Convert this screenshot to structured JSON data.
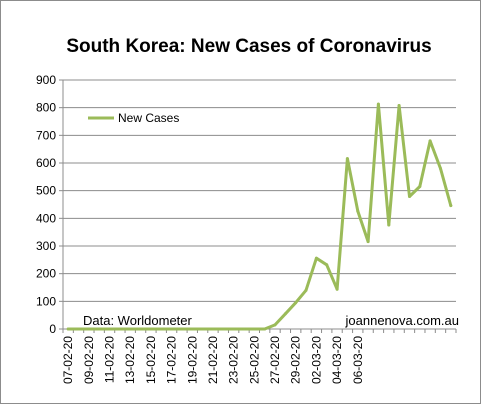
{
  "chart_data": {
    "type": "line",
    "title": "South Korea: New Cases of Coronavirus",
    "series": [
      {
        "name": "New Cases",
        "color": "#9bbb59",
        "values": [
          0,
          0,
          0,
          0,
          0,
          0,
          0,
          0,
          0,
          0,
          0,
          0,
          0,
          0,
          0,
          0,
          0,
          0,
          0,
          0,
          15,
          55,
          95,
          140,
          256,
          232,
          144,
          616,
          426,
          316,
          813,
          376,
          808,
          479,
          515,
          680,
          580,
          446
        ]
      }
    ],
    "x": [
      "07-02-20",
      "08-02-20",
      "09-02-20",
      "10-02-20",
      "11-02-20",
      "12-02-20",
      "13-02-20",
      "14-02-20",
      "15-02-20",
      "16-02-20",
      "17-02-20",
      "18-02-20",
      "19-02-20",
      "20-02-20",
      "21-02-20",
      "22-02-20",
      "23-02-20",
      "24-02-20",
      "25-02-20",
      "26-02-20",
      "27-02-20",
      "28-02-20",
      "29-02-20",
      "01-03-20",
      "02-03-20",
      "03-03-20",
      "04-03-20",
      "05-03-20",
      "06-03-20",
      "07-03-20",
      "08-03-20",
      "09-03-20",
      "10-03-20",
      "11-03-20",
      "12-03-20",
      "13-03-20",
      "14-03-20",
      "15-03-20"
    ],
    "x_tick_labels": [
      "07-02-20",
      "09-02-20",
      "11-02-20",
      "13-02-20",
      "15-02-20",
      "17-02-20",
      "19-02-20",
      "21-02-20",
      "23-02-20",
      "25-02-20",
      "27-02-20",
      "29-02-20",
      "02-03-20",
      "04-03-20",
      "06-03-20"
    ],
    "y_ticks": [
      0,
      100,
      200,
      300,
      400,
      500,
      600,
      700,
      800,
      900
    ],
    "ylim": [
      0,
      900
    ],
    "grid": true,
    "legend_position": "top-left",
    "annotations": [
      "Data: Worldometer",
      "joannenova.com.au"
    ]
  }
}
